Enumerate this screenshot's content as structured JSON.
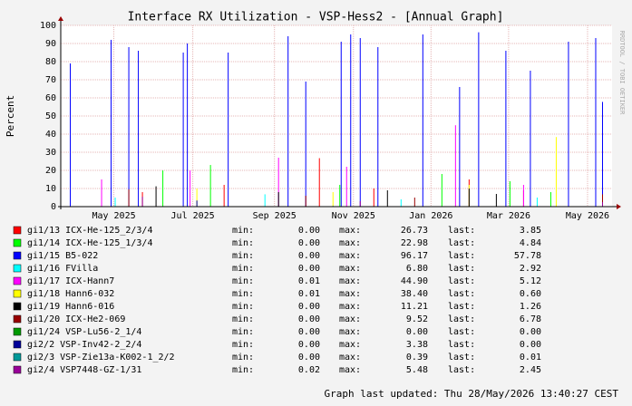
{
  "chart_data": {
    "type": "impulse",
    "title": "Interface RX Utilization - VSP-Hess2 - [Annual Graph]",
    "y_label": "Percent",
    "watermark": "RRDTOOL / TOBI OETIKER",
    "footer": "Graph last updated: Thu 28/May/2026 13:40:27 CEST",
    "stat_labels": [
      "min:",
      "max:",
      "last:"
    ],
    "ylim": [
      0,
      100
    ],
    "yticks": [
      0,
      10,
      20,
      30,
      40,
      50,
      60,
      70,
      80,
      90,
      100
    ],
    "xlim": [
      0,
      405
    ],
    "xticks": [
      {
        "value": 39,
        "label": "May 2025"
      },
      {
        "value": 97,
        "label": "Jul 2025"
      },
      {
        "value": 157,
        "label": "Sep 2025"
      },
      {
        "value": 215,
        "label": "Nov 2025"
      },
      {
        "value": 272,
        "label": "Jan 2026"
      },
      {
        "value": 329,
        "label": "Mar 2026"
      },
      {
        "value": 387,
        "label": "May 2026"
      }
    ],
    "grid": true,
    "series": [
      {
        "name": "gi1/13 ICX-He-125_2/3/4",
        "color": "#ff0000",
        "min": "0.00",
        "max": "26.73",
        "last": "3.85",
        "x": [
          60,
          120,
          190,
          230,
          300,
          340,
          398
        ],
        "values": [
          8,
          12,
          26.73,
          10,
          15,
          9,
          3.85
        ]
      },
      {
        "name": "gi1/14 ICX-He-125_1/3/4",
        "color": "#00ff00",
        "min": "0.00",
        "max": "22.98",
        "last": "4.84",
        "x": [
          75,
          110,
          205,
          280,
          330,
          360,
          398
        ],
        "values": [
          20,
          22.98,
          12,
          18,
          14,
          8,
          4.84
        ]
      },
      {
        "name": "gi1/15 B5-022",
        "color": "#0000ff",
        "min": "0.00",
        "max": "96.17",
        "last": "57.78",
        "x": [
          7,
          37,
          50,
          57,
          90,
          93,
          123,
          167,
          180,
          206,
          213,
          220,
          233,
          266,
          293,
          307,
          327,
          345,
          373,
          393,
          398
        ],
        "values": [
          79,
          92,
          88,
          86,
          85,
          90,
          85,
          94,
          69,
          91,
          95,
          93,
          88,
          95,
          66,
          96.17,
          86,
          75,
          91,
          93,
          57.78
        ]
      },
      {
        "name": "gi1/16 FVilla",
        "color": "#00ffff",
        "min": "0.00",
        "max": "6.80",
        "last": "2.92",
        "x": [
          40,
          150,
          250,
          350,
          398
        ],
        "values": [
          5,
          6.8,
          4,
          5,
          2.92
        ]
      },
      {
        "name": "gi1/17 ICX-Hann7",
        "color": "#ff00ff",
        "min": "0.01",
        "max": "44.90",
        "last": "5.12",
        "x": [
          30,
          95,
          160,
          210,
          290,
          340,
          398
        ],
        "values": [
          15,
          20,
          27,
          22,
          44.9,
          12,
          5.12
        ]
      },
      {
        "name": "gi1/18 Hann6-032",
        "color": "#ffff00",
        "min": "0.01",
        "max": "38.40",
        "last": "0.60",
        "x": [
          100,
          200,
          300,
          364,
          398
        ],
        "values": [
          10,
          8,
          12,
          38.4,
          0.6
        ]
      },
      {
        "name": "gi1/19 Hann6-016",
        "color": "#000000",
        "min": "0.00",
        "max": "11.21",
        "last": "1.26",
        "x": [
          70,
          160,
          240,
          300,
          320,
          398
        ],
        "values": [
          11.21,
          8,
          9,
          10,
          7,
          1.26
        ]
      },
      {
        "name": "gi1/20 ICX-He2-069",
        "color": "#990000",
        "min": "0.00",
        "max": "9.52",
        "last": "6.78",
        "x": [
          50,
          180,
          260,
          398
        ],
        "values": [
          9.52,
          6,
          5,
          6.78
        ]
      },
      {
        "name": "gi1/24 VSP-Lu56-2_1/4",
        "color": "#009900",
        "min": "0.00",
        "max": "0.00",
        "last": "0.00",
        "x": [
          398
        ],
        "values": [
          0
        ]
      },
      {
        "name": "gi2/2 VSP-Inv42-2_2/4",
        "color": "#000099",
        "min": "0.00",
        "max": "3.38",
        "last": "0.00",
        "x": [
          100,
          398
        ],
        "values": [
          3.38,
          0
        ]
      },
      {
        "name": "gi2/3 VSP-Zie13a-K002-1_2/2",
        "color": "#009999",
        "min": "0.00",
        "max": "0.39",
        "last": "0.01",
        "x": [
          200,
          398
        ],
        "values": [
          0.39,
          0.01
        ]
      },
      {
        "name": "gi2/4 VSP7448-GZ-1/31",
        "color": "#990099",
        "min": "0.02",
        "max": "5.48",
        "last": "2.45",
        "x": [
          60,
          220,
          398
        ],
        "values": [
          5.48,
          3,
          2.45
        ]
      }
    ]
  }
}
